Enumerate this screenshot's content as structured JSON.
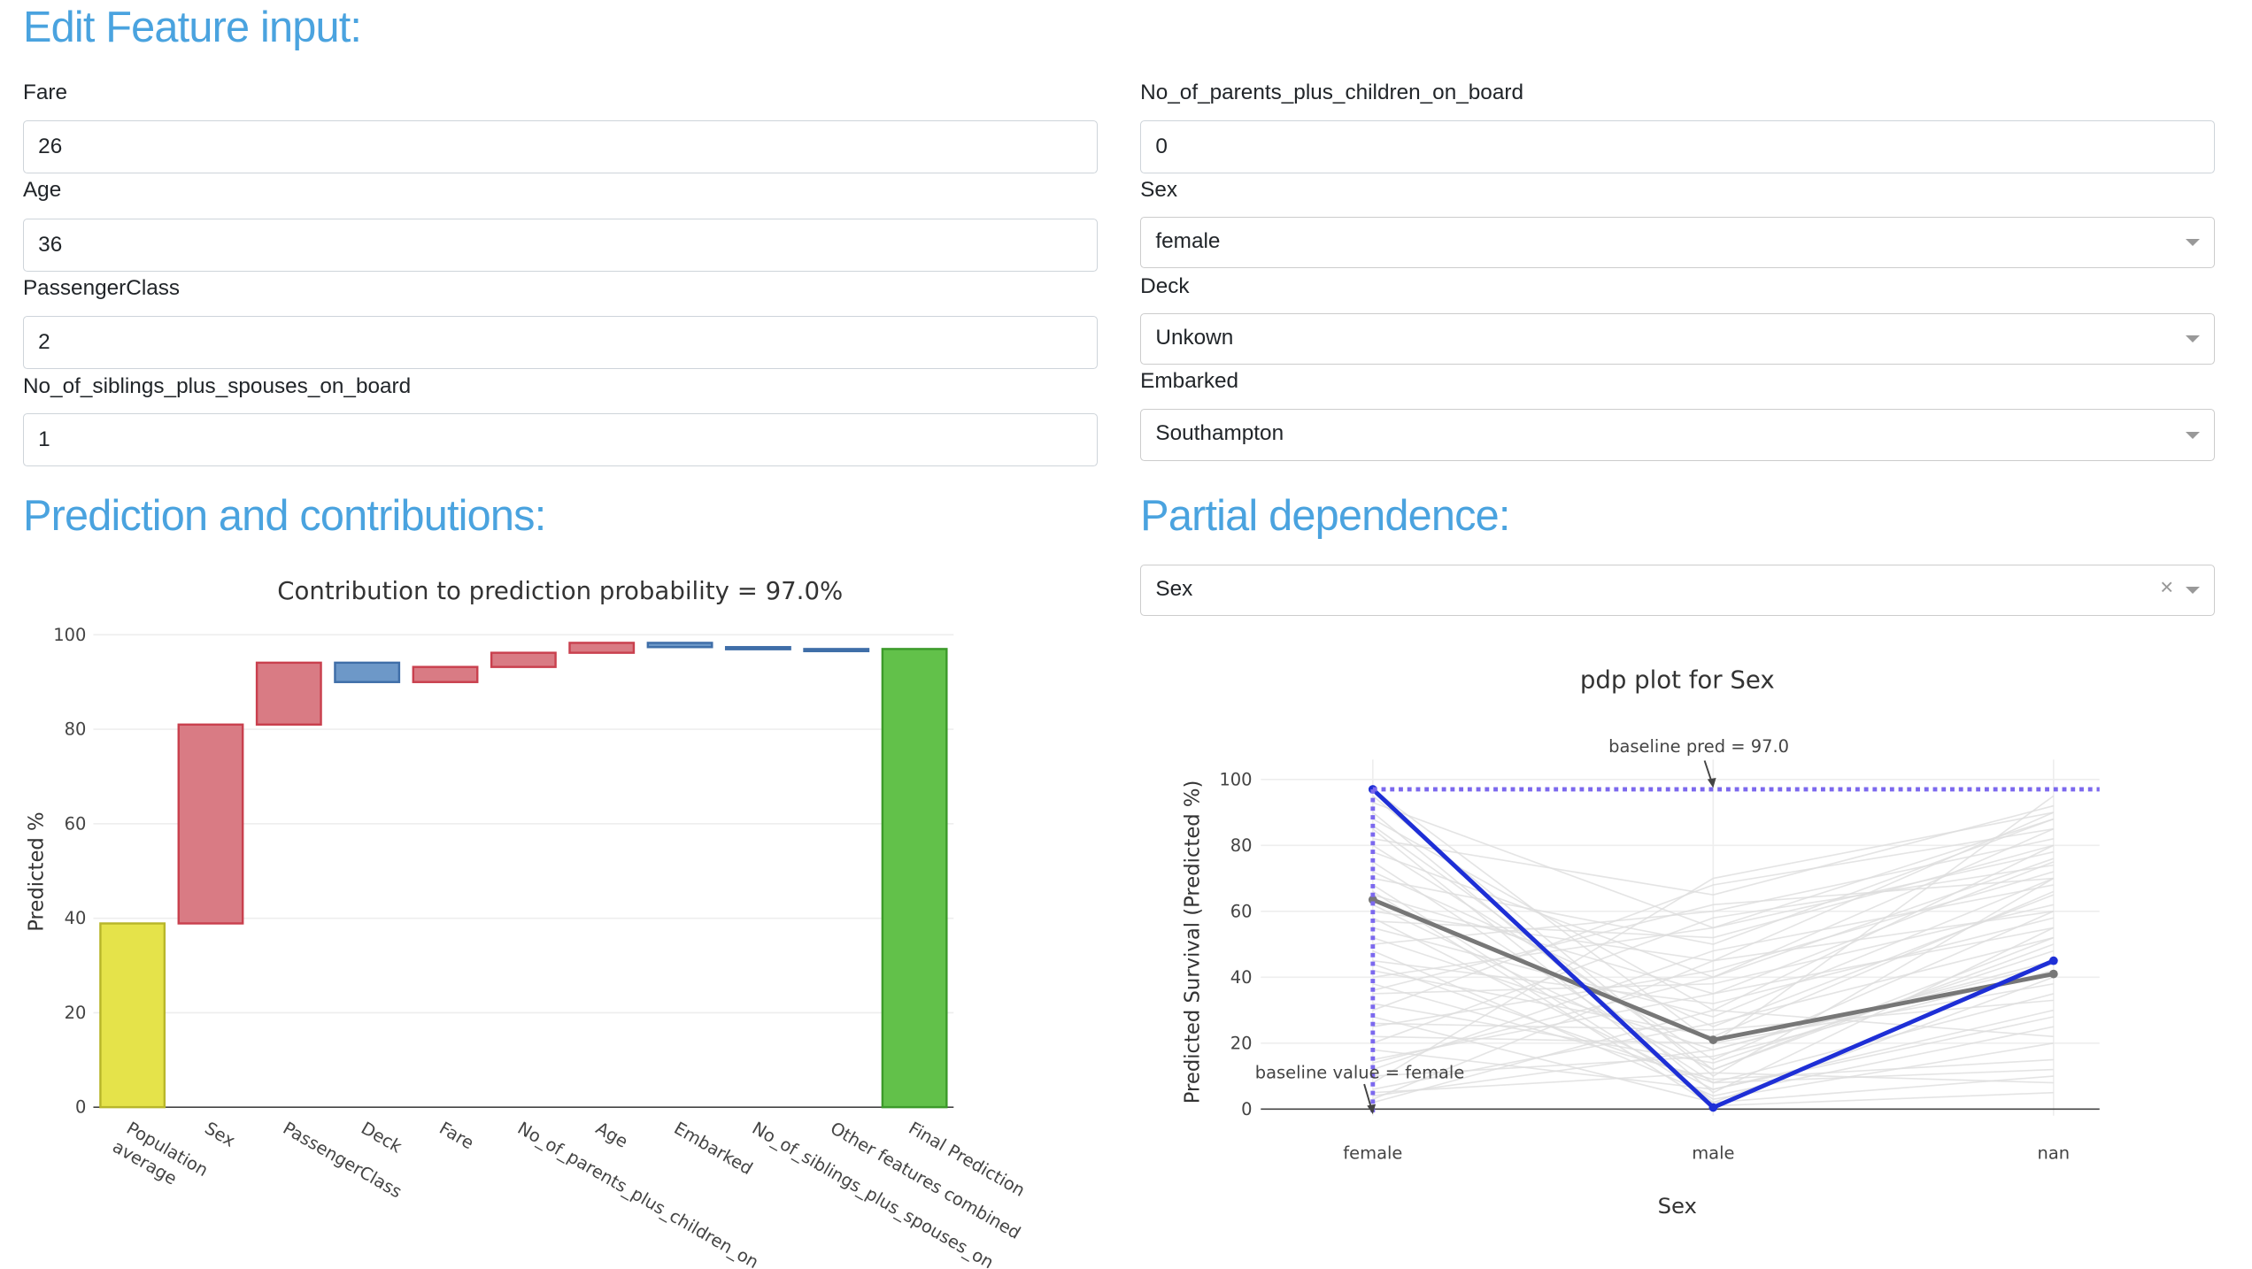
{
  "sections": {
    "edit_title": "Edit Feature input:",
    "prediction_title": "Prediction and contributions:",
    "pdp_title": "Partial dependence:"
  },
  "inputs": {
    "fare": {
      "label": "Fare",
      "value": "26"
    },
    "age": {
      "label": "Age",
      "value": "36"
    },
    "passenger_class": {
      "label": "PassengerClass",
      "value": "2"
    },
    "siblings": {
      "label": "No_of_siblings_plus_spouses_on_board",
      "value": "1"
    },
    "parents": {
      "label": "No_of_parents_plus_children_on_board",
      "value": "0"
    },
    "sex": {
      "label": "Sex",
      "value": "female"
    },
    "deck": {
      "label": "Deck",
      "value": "Unkown"
    },
    "embarked": {
      "label": "Embarked",
      "value": "Southampton"
    }
  },
  "pdp_feature": {
    "value": "Sex",
    "clear_icon": "close-icon",
    "caret_icon": "chevron-down-icon"
  },
  "chart_data": [
    {
      "type": "bar",
      "subtype": "waterfall",
      "title": "Contribution to prediction probability = 97.0%",
      "xlabel": "",
      "ylabel": "Predicted %",
      "ylim": [
        0,
        100
      ],
      "yticks": [
        0,
        20,
        40,
        60,
        80,
        100
      ],
      "grid": true,
      "categories": [
        "Population average",
        "Sex",
        "PassengerClass",
        "Deck",
        "Fare",
        "No_of_parents_plus_children_on_board",
        "Age",
        "Embarked",
        "No_of_siblings_plus_spouses_on_board",
        "Other features combined",
        "Final Prediction"
      ],
      "tick_labels": [
        "Population\naverage",
        "Sex",
        "PassengerClass",
        "Deck",
        "Fare",
        "No_of_parents_plus_children_on_...",
        "Age",
        "Embarked",
        "No_of_siblings_plus_spouses_on_...",
        "Other features combined",
        "Final Prediction"
      ],
      "bars": [
        {
          "base": 0,
          "end": 38.9,
          "kind": "total"
        },
        {
          "base": 38.9,
          "end": 81.0,
          "kind": "increase"
        },
        {
          "base": 81.0,
          "end": 94.1,
          "kind": "increase"
        },
        {
          "base": 94.1,
          "end": 90.0,
          "kind": "decrease"
        },
        {
          "base": 90.0,
          "end": 93.2,
          "kind": "increase"
        },
        {
          "base": 93.2,
          "end": 96.2,
          "kind": "increase"
        },
        {
          "base": 96.2,
          "end": 98.3,
          "kind": "increase"
        },
        {
          "base": 98.3,
          "end": 97.4,
          "kind": "decrease"
        },
        {
          "base": 97.4,
          "end": 97.0,
          "kind": "decrease"
        },
        {
          "base": 97.0,
          "end": 97.0,
          "kind": "decrease"
        },
        {
          "base": 0,
          "end": 97.0,
          "kind": "final"
        }
      ],
      "colors": {
        "total": "#e5e34a",
        "increase": "#d97b84",
        "decrease": "#6d98c8",
        "final": "#62c14a",
        "total_line": "#b8b62a",
        "increase_line": "#c9404e",
        "decrease_line": "#3f6ea8",
        "final_line": "#3c9a2a"
      }
    },
    {
      "type": "line",
      "title": "pdp plot for Sex",
      "xlabel": "Sex",
      "ylabel": "Predicted Survival (Predicted %)",
      "categories": [
        "female",
        "male",
        "nan"
      ],
      "ylim": [
        -2,
        106
      ],
      "yticks": [
        0,
        20,
        40,
        60,
        80,
        100
      ],
      "series": [
        {
          "name": "",
          "values": [
            97.0,
            0.5,
            45.0
          ],
          "color": "#1e2fd6"
        },
        {
          "name": "",
          "values": [
            63.5,
            21.0,
            41.0
          ],
          "color": "#777777"
        }
      ],
      "background_lines": [
        [
          95,
          10,
          70
        ],
        [
          90,
          5,
          55
        ],
        [
          88,
          30,
          80
        ],
        [
          85,
          2,
          40
        ],
        [
          80,
          15,
          60
        ],
        [
          78,
          40,
          85
        ],
        [
          75,
          8,
          35
        ],
        [
          72,
          25,
          65
        ],
        [
          70,
          50,
          88
        ],
        [
          68,
          3,
          20
        ],
        [
          65,
          35,
          75
        ],
        [
          62,
          12,
          50
        ],
        [
          60,
          45,
          90
        ],
        [
          58,
          6,
          30
        ],
        [
          55,
          28,
          70
        ],
        [
          52,
          18,
          45
        ],
        [
          50,
          60,
          82
        ],
        [
          48,
          4,
          25
        ],
        [
          45,
          32,
          58
        ],
        [
          42,
          22,
          66
        ],
        [
          40,
          55,
          78
        ],
        [
          38,
          9,
          15
        ],
        [
          35,
          38,
          62
        ],
        [
          32,
          14,
          48
        ],
        [
          30,
          68,
          85
        ],
        [
          28,
          2,
          10
        ],
        [
          25,
          42,
          72
        ],
        [
          22,
          20,
          38
        ],
        [
          20,
          58,
          74
        ],
        [
          18,
          6,
          28
        ],
        [
          15,
          35,
          55
        ],
        [
          12,
          48,
          68
        ],
        [
          10,
          16,
          42
        ],
        [
          8,
          70,
          90
        ],
        [
          6,
          26,
          52
        ],
        [
          5,
          11,
          8
        ],
        [
          3,
          45,
          60
        ],
        [
          2,
          30,
          22
        ],
        [
          97,
          20,
          95
        ],
        [
          93,
          55,
          88
        ],
        [
          86,
          12,
          52
        ],
        [
          82,
          65,
          92
        ],
        [
          66,
          1,
          5
        ],
        [
          57,
          52,
          80
        ],
        [
          44,
          8,
          12
        ],
        [
          36,
          62,
          70
        ],
        [
          26,
          24,
          33
        ],
        [
          14,
          40,
          76
        ],
        [
          4,
          18,
          44
        ]
      ],
      "baseline_pred": 97.0,
      "baseline_category": "female",
      "annotations": [
        "baseline pred = 97.0",
        "baseline value = female"
      ],
      "baseline_color": "#7b68ee"
    }
  ]
}
